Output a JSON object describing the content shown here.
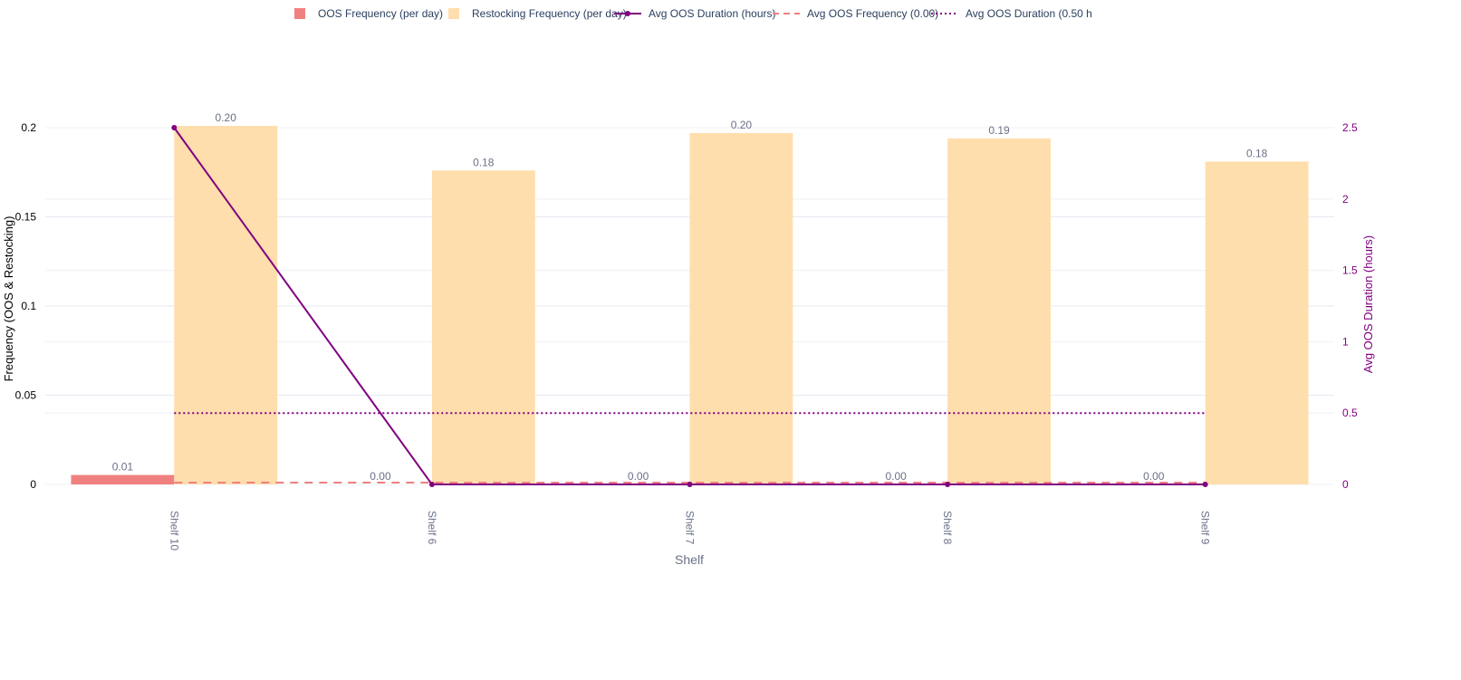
{
  "chart_data": {
    "type": "bar",
    "xlabel": "Shelf",
    "ylabel_left": "Frequency (OOS & Restocking)",
    "ylabel_right": "Avg OOS Duration (hours)",
    "categories": [
      "Shelf 10",
      "Shelf 6",
      "Shelf 7",
      "Shelf 8",
      "Shelf 9"
    ],
    "y_left": {
      "range": [
        0,
        0.2
      ],
      "ticks": [
        0,
        0.05,
        0.1,
        0.15,
        0.2
      ],
      "tick_labels": [
        "0",
        "0.05",
        "0.1",
        "0.15",
        "0.2"
      ]
    },
    "y_right": {
      "range": [
        0,
        2.5
      ],
      "ticks": [
        0,
        0.5,
        1,
        1.5,
        2,
        2.5
      ],
      "tick_labels": [
        "0",
        "0.5",
        "1",
        "1.5",
        "2",
        "2.5"
      ]
    },
    "grid": true,
    "legend_position": "top",
    "series": [
      {
        "name": "OOS Frequency (per day)",
        "type": "bar",
        "axis": "left",
        "color": "#f08080",
        "values": [
          0.0053,
          0.0,
          0.0,
          0.0,
          0.0
        ],
        "labels": [
          "0.01",
          "0.00",
          "0.00",
          "0.00",
          "0.00"
        ]
      },
      {
        "name": "Restocking Frequency (per day)",
        "type": "bar",
        "axis": "left",
        "color": "#ffdead",
        "values": [
          0.201,
          0.176,
          0.197,
          0.194,
          0.181
        ],
        "labels": [
          "0.20",
          "0.18",
          "0.20",
          "0.19",
          "0.18"
        ]
      },
      {
        "name": "Avg OOS Duration (hours)",
        "type": "line",
        "axis": "right",
        "color": "#800080",
        "values": [
          2.5,
          0.0,
          0.0,
          0.0,
          0.0
        ]
      },
      {
        "name": "Avg OOS Frequency (0.00)",
        "type": "hline",
        "axis": "left",
        "color": "#f08080",
        "dash": "dashed",
        "value": 0.001
      },
      {
        "name": "Avg OOS Duration (0.50 h",
        "type": "hline",
        "axis": "right",
        "color": "#800080",
        "dash": "dotted",
        "value": 0.5
      }
    ]
  }
}
